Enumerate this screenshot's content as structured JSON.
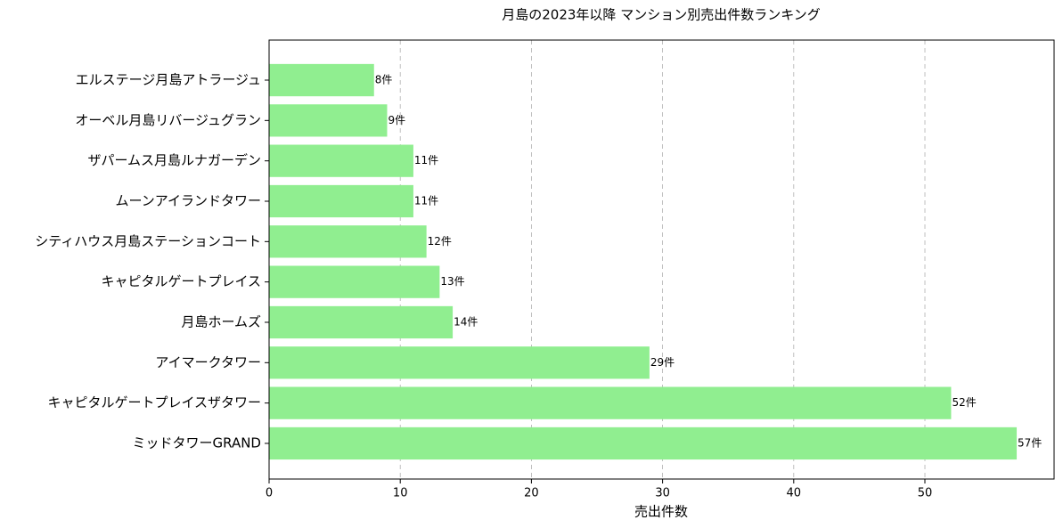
{
  "chart_data": {
    "type": "barh",
    "title": "月島の2023年以降 マンション別売出件数ランキング",
    "x_label": "売出件数",
    "categories": [
      "エルステージ月島アトラージュ",
      "オーベル月島リバージュグラン",
      "ザパームス月島ルナガーデン",
      "ムーンアイランドタワー",
      "シティハウス月島ステーションコート",
      "キャピタルゲートプレイス",
      "月島ホームズ",
      "アイマークタワー",
      "キャピタルゲートプレイスザタワー",
      "ミッドタワーGRAND"
    ],
    "values": [
      8,
      9,
      11,
      11,
      12,
      13,
      14,
      29,
      52,
      57
    ],
    "value_labels": [
      "8件",
      "9件",
      "11件",
      "11件",
      "12件",
      "13件",
      "14件",
      "29件",
      "52件",
      "57件"
    ],
    "color": "#90ee90",
    "xlim": [
      0,
      59.85
    ],
    "xticks": [
      0,
      10,
      20,
      30,
      40,
      50
    ],
    "grid": true
  }
}
